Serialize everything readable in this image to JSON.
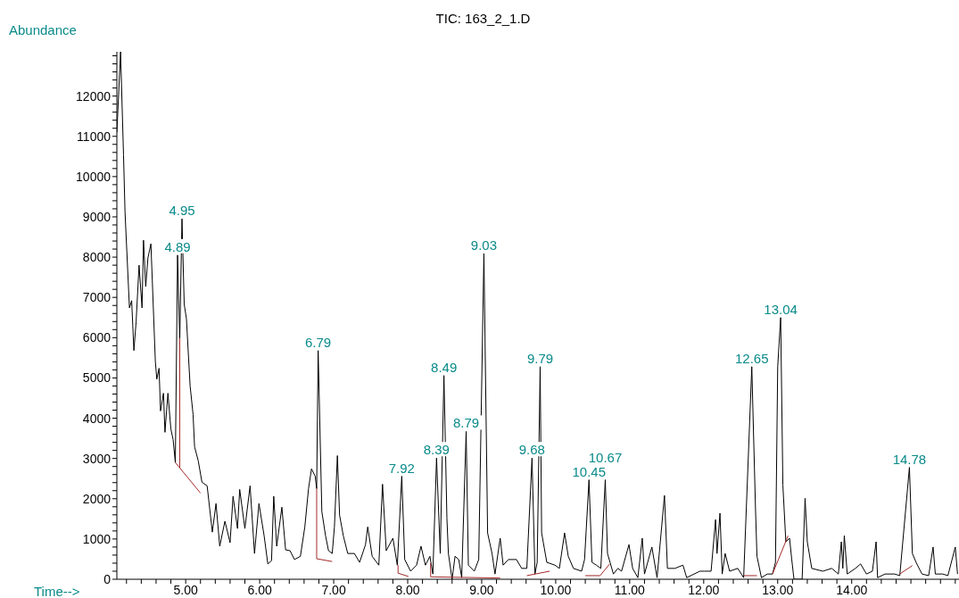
{
  "chart_data": {
    "type": "line",
    "title": "TIC: 163_2_1.D",
    "xlabel": "Time-->",
    "ylabel": "Abundance",
    "xlim": [
      4.07,
      15.45
    ],
    "ylim": [
      0,
      13100
    ],
    "xticks": [
      {
        "value": 4.2,
        "label": null
      },
      {
        "value": 4.4,
        "label": null
      },
      {
        "value": 4.6,
        "label": null
      },
      {
        "value": 4.8,
        "label": null
      },
      {
        "value": 5,
        "label": "5.00"
      },
      {
        "value": 5.2,
        "label": null
      },
      {
        "value": 5.4,
        "label": null
      },
      {
        "value": 5.6,
        "label": null
      },
      {
        "value": 5.8,
        "label": null
      },
      {
        "value": 6,
        "label": "6.00"
      },
      {
        "value": 6.2,
        "label": null
      },
      {
        "value": 6.4,
        "label": null
      },
      {
        "value": 6.6,
        "label": null
      },
      {
        "value": 6.8,
        "label": null
      },
      {
        "value": 7,
        "label": "7.00"
      },
      {
        "value": 7.2,
        "label": null
      },
      {
        "value": 7.4,
        "label": null
      },
      {
        "value": 7.6,
        "label": null
      },
      {
        "value": 7.8,
        "label": null
      },
      {
        "value": 8,
        "label": "8.00"
      },
      {
        "value": 8.2,
        "label": null
      },
      {
        "value": 8.4,
        "label": null
      },
      {
        "value": 8.6,
        "label": null
      },
      {
        "value": 8.8,
        "label": null
      },
      {
        "value": 9,
        "label": "9.00"
      },
      {
        "value": 9.2,
        "label": null
      },
      {
        "value": 9.4,
        "label": null
      },
      {
        "value": 9.6,
        "label": null
      },
      {
        "value": 9.8,
        "label": null
      },
      {
        "value": 10,
        "label": "10.00"
      },
      {
        "value": 10.2,
        "label": null
      },
      {
        "value": 10.4,
        "label": null
      },
      {
        "value": 10.6,
        "label": null
      },
      {
        "value": 10.8,
        "label": null
      },
      {
        "value": 11,
        "label": "11.00"
      },
      {
        "value": 11.2,
        "label": null
      },
      {
        "value": 11.4,
        "label": null
      },
      {
        "value": 11.6,
        "label": null
      },
      {
        "value": 11.8,
        "label": null
      },
      {
        "value": 12,
        "label": "12.00"
      },
      {
        "value": 12.2,
        "label": null
      },
      {
        "value": 12.4,
        "label": null
      },
      {
        "value": 12.6,
        "label": null
      },
      {
        "value": 12.8,
        "label": null
      },
      {
        "value": 13,
        "label": "13.00"
      },
      {
        "value": 13.2,
        "label": null
      },
      {
        "value": 13.4,
        "label": null
      },
      {
        "value": 13.6,
        "label": null
      },
      {
        "value": 13.8,
        "label": null
      },
      {
        "value": 14,
        "label": "14.00"
      },
      {
        "value": 14.2,
        "label": null
      },
      {
        "value": 14.4,
        "label": null
      },
      {
        "value": 14.6,
        "label": null
      },
      {
        "value": 14.8,
        "label": null
      },
      {
        "value": 15,
        "label": null
      },
      {
        "value": 15.2,
        "label": null
      },
      {
        "value": 15.4,
        "label": null
      }
    ],
    "yticks": [
      0,
      {
        "value": 200,
        "label": null
      },
      {
        "value": 400,
        "label": null
      },
      {
        "value": 600,
        "label": null
      },
      {
        "value": 800,
        "label": null
      },
      1000,
      {
        "value": 1200,
        "label": null
      },
      {
        "value": 1400,
        "label": null
      },
      {
        "value": 1600,
        "label": null
      },
      {
        "value": 1800,
        "label": null
      },
      2000,
      {
        "value": 2200,
        "label": null
      },
      {
        "value": 2400,
        "label": null
      },
      {
        "value": 2600,
        "label": null
      },
      {
        "value": 2800,
        "label": null
      },
      3000,
      {
        "value": 3200,
        "label": null
      },
      {
        "value": 3400,
        "label": null
      },
      {
        "value": 3600,
        "label": null
      },
      {
        "value": 3800,
        "label": null
      },
      4000,
      {
        "value": 4200,
        "label": null
      },
      {
        "value": 4400,
        "label": null
      },
      {
        "value": 4600,
        "label": null
      },
      {
        "value": 4800,
        "label": null
      },
      5000,
      {
        "value": 5200,
        "label": null
      },
      {
        "value": 5400,
        "label": null
      },
      {
        "value": 5600,
        "label": null
      },
      {
        "value": 5800,
        "label": null
      },
      6000,
      {
        "value": 6200,
        "label": null
      },
      {
        "value": 6400,
        "label": null
      },
      {
        "value": 6600,
        "label": null
      },
      {
        "value": 6800,
        "label": null
      },
      7000,
      {
        "value": 7200,
        "label": null
      },
      {
        "value": 7400,
        "label": null
      },
      {
        "value": 7600,
        "label": null
      },
      {
        "value": 7800,
        "label": null
      },
      8000,
      {
        "value": 8200,
        "label": null
      },
      {
        "value": 8400,
        "label": null
      },
      {
        "value": 8600,
        "label": null
      },
      {
        "value": 8800,
        "label": null
      },
      9000,
      {
        "value": 9200,
        "label": null
      },
      {
        "value": 9400,
        "label": null
      },
      {
        "value": 9600,
        "label": null
      },
      {
        "value": 9800,
        "label": null
      },
      10000,
      {
        "value": 10200,
        "label": null
      },
      {
        "value": 10400,
        "label": null
      },
      {
        "value": 10600,
        "label": null
      },
      {
        "value": 10800,
        "label": null
      },
      11000,
      {
        "value": 11200,
        "label": null
      },
      {
        "value": 11400,
        "label": null
      },
      {
        "value": 11600,
        "label": null
      },
      {
        "value": 11800,
        "label": null
      },
      12000,
      {
        "value": 12200,
        "label": null
      },
      {
        "value": 12400,
        "label": null
      },
      {
        "value": 12600,
        "label": null
      },
      {
        "value": 12800,
        "label": null
      },
      {
        "value": 13000,
        "label": null
      }
    ],
    "x": [
      4.07,
      4.12,
      4.16,
      4.18,
      4.24,
      4.27,
      4.3,
      4.33,
      4.37,
      4.41,
      4.43,
      4.46,
      4.49,
      4.53,
      4.55,
      4.59,
      4.61,
      4.64,
      4.66,
      4.7,
      4.72,
      4.76,
      4.8,
      4.83,
      4.86,
      4.89,
      4.92,
      4.95,
      4.98,
      5.01,
      5.06,
      5.1,
      5.12,
      5.17,
      5.22,
      5.29,
      5.36,
      5.41,
      5.46,
      5.53,
      5.6,
      5.64,
      5.7,
      5.73,
      5.8,
      5.87,
      5.93,
      5.99,
      6.06,
      6.11,
      6.16,
      6.19,
      6.23,
      6.3,
      6.35,
      6.41,
      6.47,
      6.55,
      6.61,
      6.66,
      6.7,
      6.75,
      6.77,
      6.79,
      6.84,
      6.89,
      6.93,
      6.98,
      7.01,
      7.05,
      7.08,
      7.13,
      7.19,
      7.28,
      7.35,
      7.43,
      7.46,
      7.52,
      7.61,
      7.66,
      7.71,
      7.8,
      7.86,
      7.92,
      7.96,
      8.04,
      8.12,
      8.18,
      8.24,
      8.3,
      8.34,
      8.39,
      8.44,
      8.49,
      8.53,
      8.55,
      8.6,
      8.64,
      8.69,
      8.73,
      8.79,
      8.82,
      8.9,
      8.96,
      9.03,
      9.08,
      9.14,
      9.18,
      9.25,
      9.29,
      9.36,
      9.47,
      9.54,
      9.61,
      9.68,
      9.72,
      9.75,
      9.79,
      9.81,
      9.88,
      9.99,
      10.05,
      10.12,
      10.17,
      10.24,
      10.35,
      10.39,
      10.45,
      10.49,
      10.55,
      10.61,
      10.67,
      10.7,
      10.78,
      10.84,
      10.89,
      10.99,
      11.04,
      11.11,
      11.17,
      11.2,
      11.3,
      11.37,
      11.47,
      11.51,
      11.61,
      11.72,
      11.77,
      11.87,
      11.95,
      12.01,
      12.1,
      12.16,
      12.18,
      12.22,
      12.25,
      12.29,
      12.35,
      12.46,
      12.54,
      12.65,
      12.7,
      12.72,
      12.78,
      12.86,
      12.93,
      12.97,
      13.0,
      13.04,
      13.07,
      13.11,
      13.16,
      13.19,
      13.22,
      13.33,
      13.37,
      13.4,
      13.46,
      13.61,
      13.73,
      13.82,
      13.86,
      13.88,
      13.9,
      13.94,
      14.05,
      14.12,
      14.2,
      14.28,
      14.33,
      14.35,
      14.45,
      14.58,
      14.65,
      14.78,
      14.82,
      14.87,
      14.95,
      15.04,
      15.1,
      15.13,
      15.23,
      15.3,
      15.4,
      15.43
    ],
    "series": [
      {
        "color": "#000000",
        "values": [
          11100,
          13100,
          10540,
          9130,
          6740,
          6920,
          5680,
          6390,
          7800,
          6740,
          8420,
          7270,
          7980,
          8330,
          7360,
          5410,
          4970,
          5240,
          4180,
          4620,
          3650,
          4620,
          3730,
          3470,
          2900,
          8050,
          5950,
          8950,
          6830,
          6470,
          4800,
          4090,
          3290,
          2940,
          2410,
          2320,
          1170,
          1880,
          820,
          1440,
          910,
          2060,
          1260,
          2230,
          1260,
          2320,
          640,
          1880,
          1080,
          380,
          460,
          2060,
          820,
          1790,
          730,
          710,
          490,
          570,
          1300,
          2250,
          2740,
          2560,
          2250,
          5680,
          1680,
          1080,
          710,
          640,
          1300,
          3070,
          1590,
          1080,
          640,
          640,
          420,
          860,
          1300,
          570,
          350,
          2360,
          710,
          1020,
          350,
          2560,
          490,
          200,
          350,
          820,
          350,
          570,
          130,
          3010,
          640,
          5060,
          1520,
          640,
          0,
          570,
          490,
          40,
          3670,
          350,
          200,
          490,
          8090,
          1150,
          640,
          130,
          1020,
          350,
          490,
          490,
          270,
          270,
          3010,
          130,
          420,
          5280,
          1150,
          420,
          350,
          270,
          1150,
          570,
          270,
          200,
          490,
          2470,
          420,
          350,
          270,
          2470,
          640,
          130,
          270,
          200,
          860,
          270,
          40,
          1020,
          130,
          800,
          40,
          2080,
          270,
          270,
          350,
          40,
          130,
          200,
          200,
          200,
          1480,
          640,
          1640,
          130,
          640,
          200,
          270,
          40,
          5280,
          1750,
          570,
          40,
          130,
          130,
          420,
          5280,
          6500,
          2340,
          930,
          1020,
          490,
          0,
          0,
          2010,
          930,
          270,
          200,
          270,
          130,
          930,
          270,
          1080,
          130,
          270,
          380,
          130,
          200,
          930,
          40,
          130,
          130,
          90,
          2780,
          640,
          420,
          130,
          90,
          800,
          130,
          130,
          90,
          800,
          130
        ]
      },
      {
        "color": "#a52a2a",
        "x": [
          4.86,
          5.2
        ],
        "values": [
          2900,
          2140
        ]
      },
      {
        "color": "#a52a2a",
        "x": [
          4.92,
          4.92
        ],
        "values": [
          5990,
          2770
        ]
      },
      {
        "color": "#a52a2a",
        "x": [
          6.77,
          6.77,
          6.98
        ],
        "values": [
          2250,
          510,
          440
        ]
      },
      {
        "color": "#a52a2a",
        "x": [
          7.87,
          7.87,
          8.01
        ],
        "values": [
          350,
          150,
          70
        ]
      },
      {
        "color": "#a52a2a",
        "x": [
          8.31,
          8.31,
          9.25
        ],
        "values": [
          400,
          60,
          30
        ]
      },
      {
        "color": "#a52a2a",
        "x": [
          9.61,
          9.92
        ],
        "values": [
          90,
          200
        ]
      },
      {
        "color": "#a52a2a",
        "x": [
          10.4,
          10.6,
          10.73
        ],
        "values": [
          90,
          90,
          380
        ]
      },
      {
        "color": "#a52a2a",
        "x": [
          12.54,
          12.72
        ],
        "values": [
          90,
          90
        ]
      },
      {
        "color": "#a52a2a",
        "x": [
          12.93,
          13.14
        ],
        "values": [
          130,
          1080
        ]
      },
      {
        "color": "#a52a2a",
        "x": [
          14.65,
          14.82
        ],
        "values": [
          130,
          340
        ]
      }
    ],
    "annotations": [
      {
        "text": "4.95",
        "x": 4.95,
        "y": 8950
      },
      {
        "text": "4.89",
        "x": 4.89,
        "y": 8050
      },
      {
        "text": "6.79",
        "x": 6.79,
        "y": 5680
      },
      {
        "text": "7.92",
        "x": 7.92,
        "y": 2560
      },
      {
        "text": "8.39",
        "x": 8.39,
        "y": 3010
      },
      {
        "text": "8.49",
        "x": 8.49,
        "y": 5060
      },
      {
        "text": "8.79",
        "x": 8.79,
        "y": 3670
      },
      {
        "text": "9.03",
        "x": 9.03,
        "y": 8090
      },
      {
        "text": "9.68",
        "x": 9.68,
        "y": 3010
      },
      {
        "text": "9.79",
        "x": 9.79,
        "y": 5280
      },
      {
        "text": "10.45",
        "x": 10.45,
        "y": 2470
      },
      {
        "text": "10.67",
        "x": 10.67,
        "y": 2470
      },
      {
        "text": "12.65",
        "x": 12.65,
        "y": 5280
      },
      {
        "text": "13.04",
        "x": 13.04,
        "y": 6500
      },
      {
        "text": "14.78",
        "x": 14.78,
        "y": 2780
      }
    ]
  }
}
